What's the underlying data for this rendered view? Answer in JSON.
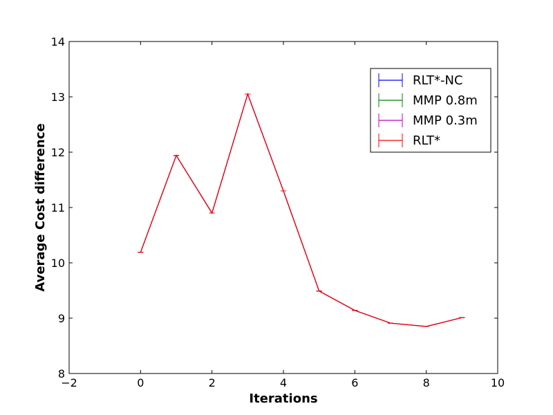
{
  "chart_data": {
    "type": "line",
    "title": "",
    "xlabel": "Iterations",
    "ylabel": "Average Cost difference",
    "xlim": [
      -2,
      10
    ],
    "ylim": [
      8,
      14
    ],
    "xticks": [
      -2,
      0,
      2,
      4,
      6,
      8,
      10
    ],
    "xtick_labels": [
      "−2",
      "0",
      "2",
      "4",
      "6",
      "8",
      "10"
    ],
    "yticks": [
      8,
      9,
      10,
      11,
      12,
      13,
      14
    ],
    "ytick_labels": [
      "8",
      "9",
      "10",
      "11",
      "12",
      "13",
      "14"
    ],
    "grid": false,
    "legend_position": "top-right",
    "error_bars": true,
    "x": [
      0,
      1,
      2,
      3,
      4,
      5,
      6,
      7,
      8,
      9
    ],
    "series": [
      {
        "name": "RLT*-NC",
        "color": "#0000ff",
        "values": [
          10.19,
          11.94,
          10.9,
          13.05,
          11.3,
          9.49,
          9.14,
          8.91,
          8.85,
          9.01
        ]
      },
      {
        "name": "MMP 0.8m",
        "color": "#008000",
        "values": [
          10.19,
          11.94,
          10.9,
          13.05,
          11.3,
          9.49,
          9.14,
          8.91,
          8.85,
          9.01
        ]
      },
      {
        "name": "MMP 0.3m",
        "color": "#bf00bf",
        "values": [
          10.19,
          11.94,
          10.9,
          13.05,
          11.3,
          9.49,
          9.14,
          8.91,
          8.85,
          9.01
        ]
      },
      {
        "name": "RLT*",
        "color": "#ff0000",
        "values": [
          10.19,
          11.94,
          10.9,
          13.05,
          11.3,
          9.49,
          9.14,
          8.91,
          8.85,
          9.01
        ]
      }
    ]
  }
}
